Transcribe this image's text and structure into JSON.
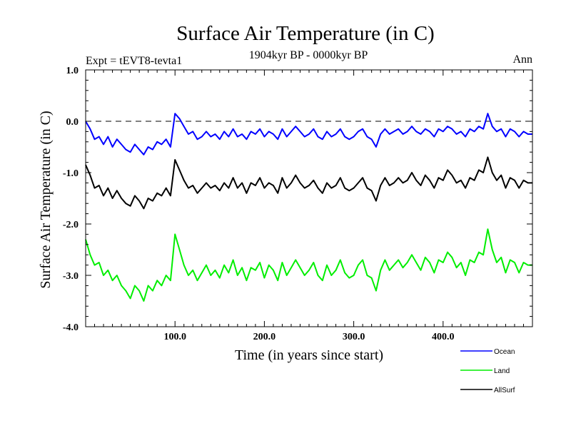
{
  "chart_data": {
    "type": "line",
    "title": "Surface Air Temperature (in C)",
    "subtitle": "1904kyr BP - 0000kyr BP",
    "expt_label": "Expt = tEVT8-tevta1",
    "season_label": "Ann",
    "xlabel": "Time (in years since start)",
    "ylabel": "Surface Air Temperature (in C)",
    "xlim": [
      0,
      500
    ],
    "ylim": [
      -4.0,
      1.0
    ],
    "x_ticks": [
      {
        "value": 100,
        "label": "100.0"
      },
      {
        "value": 200,
        "label": "200.0"
      },
      {
        "value": 300,
        "label": "300.0"
      },
      {
        "value": 400,
        "label": "400.0"
      }
    ],
    "y_ticks": [
      {
        "value": 1.0,
        "label": "1.0"
      },
      {
        "value": 0.0,
        "label": "0.0"
      },
      {
        "value": -1.0,
        "label": "-1.0"
      },
      {
        "value": -2.0,
        "label": "-2.0"
      },
      {
        "value": -3.0,
        "label": "-3.0"
      },
      {
        "value": -4.0,
        "label": "-4.0"
      }
    ],
    "reference_line": 0.0,
    "legend_position": "bottom-right",
    "series": [
      {
        "name": "Ocean",
        "color": "#0000ff",
        "x": [
          0,
          5,
          10,
          15,
          20,
          25,
          30,
          35,
          40,
          45,
          50,
          55,
          60,
          65,
          70,
          75,
          80,
          85,
          90,
          95,
          100,
          105,
          110,
          115,
          120,
          125,
          130,
          135,
          140,
          145,
          150,
          155,
          160,
          165,
          170,
          175,
          180,
          185,
          190,
          195,
          200,
          205,
          210,
          215,
          220,
          225,
          230,
          235,
          240,
          245,
          250,
          255,
          260,
          265,
          270,
          275,
          280,
          285,
          290,
          295,
          300,
          305,
          310,
          315,
          320,
          325,
          330,
          335,
          340,
          345,
          350,
          355,
          360,
          365,
          370,
          375,
          380,
          385,
          390,
          395,
          400,
          405,
          410,
          415,
          420,
          425,
          430,
          435,
          440,
          445,
          450,
          455,
          460,
          465,
          470,
          475,
          480,
          485,
          490,
          495,
          500
        ],
        "values": [
          0.0,
          -0.15,
          -0.35,
          -0.3,
          -0.45,
          -0.3,
          -0.5,
          -0.35,
          -0.45,
          -0.55,
          -0.6,
          -0.45,
          -0.55,
          -0.65,
          -0.5,
          -0.55,
          -0.4,
          -0.45,
          -0.35,
          -0.5,
          0.15,
          0.05,
          -0.1,
          -0.25,
          -0.2,
          -0.35,
          -0.3,
          -0.2,
          -0.3,
          -0.25,
          -0.35,
          -0.2,
          -0.3,
          -0.15,
          -0.3,
          -0.25,
          -0.35,
          -0.2,
          -0.25,
          -0.15,
          -0.3,
          -0.2,
          -0.25,
          -0.35,
          -0.15,
          -0.3,
          -0.2,
          -0.1,
          -0.2,
          -0.3,
          -0.25,
          -0.15,
          -0.3,
          -0.35,
          -0.2,
          -0.3,
          -0.25,
          -0.15,
          -0.3,
          -0.35,
          -0.3,
          -0.2,
          -0.15,
          -0.3,
          -0.35,
          -0.5,
          -0.25,
          -0.15,
          -0.25,
          -0.2,
          -0.15,
          -0.25,
          -0.2,
          -0.1,
          -0.2,
          -0.25,
          -0.15,
          -0.2,
          -0.3,
          -0.15,
          -0.2,
          -0.1,
          -0.15,
          -0.25,
          -0.2,
          -0.3,
          -0.15,
          -0.2,
          -0.1,
          -0.15,
          0.15,
          -0.1,
          -0.2,
          -0.15,
          -0.3,
          -0.15,
          -0.2,
          -0.3,
          -0.2,
          -0.25,
          -0.25
        ]
      },
      {
        "name": "Land",
        "color": "#00ee00",
        "x": [
          0,
          5,
          10,
          15,
          20,
          25,
          30,
          35,
          40,
          45,
          50,
          55,
          60,
          65,
          70,
          75,
          80,
          85,
          90,
          95,
          100,
          105,
          110,
          115,
          120,
          125,
          130,
          135,
          140,
          145,
          150,
          155,
          160,
          165,
          170,
          175,
          180,
          185,
          190,
          195,
          200,
          205,
          210,
          215,
          220,
          225,
          230,
          235,
          240,
          245,
          250,
          255,
          260,
          265,
          270,
          275,
          280,
          285,
          290,
          295,
          300,
          305,
          310,
          315,
          320,
          325,
          330,
          335,
          340,
          345,
          350,
          355,
          360,
          365,
          370,
          375,
          380,
          385,
          390,
          395,
          400,
          405,
          410,
          415,
          420,
          425,
          430,
          435,
          440,
          445,
          450,
          455,
          460,
          465,
          470,
          475,
          480,
          485,
          490,
          495,
          500
        ],
        "values": [
          -2.3,
          -2.6,
          -2.8,
          -2.75,
          -3.0,
          -2.9,
          -3.1,
          -3.0,
          -3.2,
          -3.3,
          -3.45,
          -3.2,
          -3.3,
          -3.5,
          -3.2,
          -3.3,
          -3.1,
          -3.2,
          -3.0,
          -3.1,
          -2.2,
          -2.5,
          -2.8,
          -3.0,
          -2.9,
          -3.1,
          -2.95,
          -2.8,
          -3.0,
          -2.9,
          -3.05,
          -2.8,
          -2.95,
          -2.7,
          -3.0,
          -2.85,
          -3.1,
          -2.85,
          -2.9,
          -2.75,
          -3.05,
          -2.8,
          -2.9,
          -3.1,
          -2.75,
          -3.0,
          -2.85,
          -2.7,
          -2.85,
          -3.0,
          -2.9,
          -2.75,
          -3.0,
          -3.1,
          -2.8,
          -3.0,
          -2.9,
          -2.7,
          -2.95,
          -3.05,
          -3.0,
          -2.8,
          -2.7,
          -3.0,
          -3.05,
          -3.3,
          -2.9,
          -2.7,
          -2.9,
          -2.8,
          -2.7,
          -2.85,
          -2.75,
          -2.6,
          -2.75,
          -2.9,
          -2.65,
          -2.75,
          -2.95,
          -2.7,
          -2.75,
          -2.55,
          -2.65,
          -2.85,
          -2.75,
          -3.0,
          -2.7,
          -2.75,
          -2.55,
          -2.6,
          -2.1,
          -2.5,
          -2.75,
          -2.65,
          -2.95,
          -2.7,
          -2.75,
          -2.95,
          -2.75,
          -2.8,
          -2.8
        ]
      },
      {
        "name": "AllSurf",
        "color": "#000000",
        "x": [
          0,
          5,
          10,
          15,
          20,
          25,
          30,
          35,
          40,
          45,
          50,
          55,
          60,
          65,
          70,
          75,
          80,
          85,
          90,
          95,
          100,
          105,
          110,
          115,
          120,
          125,
          130,
          135,
          140,
          145,
          150,
          155,
          160,
          165,
          170,
          175,
          180,
          185,
          190,
          195,
          200,
          205,
          210,
          215,
          220,
          225,
          230,
          235,
          240,
          245,
          250,
          255,
          260,
          265,
          270,
          275,
          280,
          285,
          290,
          295,
          300,
          305,
          310,
          315,
          320,
          325,
          330,
          335,
          340,
          345,
          350,
          355,
          360,
          365,
          370,
          375,
          380,
          385,
          390,
          395,
          400,
          405,
          410,
          415,
          420,
          425,
          430,
          435,
          440,
          445,
          450,
          455,
          460,
          465,
          470,
          475,
          480,
          485,
          490,
          495,
          500
        ],
        "values": [
          -0.85,
          -1.05,
          -1.3,
          -1.25,
          -1.45,
          -1.3,
          -1.5,
          -1.35,
          -1.5,
          -1.6,
          -1.65,
          -1.45,
          -1.55,
          -1.7,
          -1.5,
          -1.55,
          -1.4,
          -1.45,
          -1.3,
          -1.45,
          -0.75,
          -0.95,
          -1.15,
          -1.3,
          -1.25,
          -1.4,
          -1.3,
          -1.2,
          -1.3,
          -1.25,
          -1.35,
          -1.2,
          -1.3,
          -1.1,
          -1.3,
          -1.2,
          -1.4,
          -1.2,
          -1.25,
          -1.1,
          -1.3,
          -1.2,
          -1.25,
          -1.4,
          -1.1,
          -1.3,
          -1.2,
          -1.05,
          -1.2,
          -1.3,
          -1.25,
          -1.15,
          -1.3,
          -1.4,
          -1.2,
          -1.3,
          -1.25,
          -1.1,
          -1.3,
          -1.35,
          -1.3,
          -1.2,
          -1.1,
          -1.3,
          -1.35,
          -1.55,
          -1.25,
          -1.1,
          -1.25,
          -1.2,
          -1.1,
          -1.2,
          -1.15,
          -1.0,
          -1.15,
          -1.25,
          -1.05,
          -1.15,
          -1.3,
          -1.1,
          -1.15,
          -0.95,
          -1.05,
          -1.2,
          -1.15,
          -1.3,
          -1.1,
          -1.15,
          -0.95,
          -1.0,
          -0.7,
          -1.0,
          -1.15,
          -1.05,
          -1.3,
          -1.1,
          -1.15,
          -1.3,
          -1.15,
          -1.2,
          -1.2
        ]
      }
    ]
  }
}
